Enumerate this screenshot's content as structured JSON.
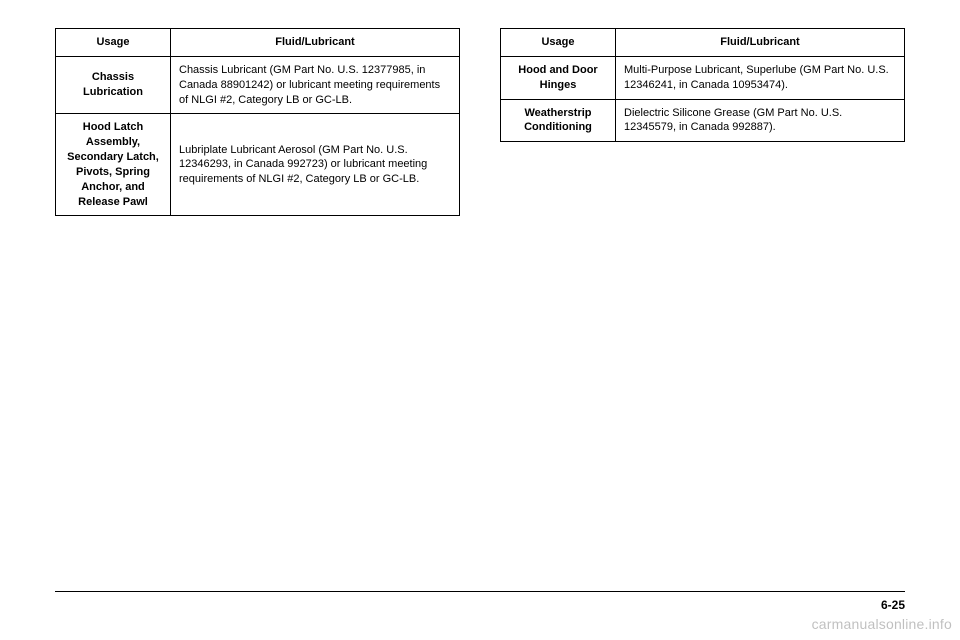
{
  "left_table": {
    "headers": [
      "Usage",
      "Fluid/Lubricant"
    ],
    "rows": [
      {
        "usage": "Chassis Lubrication",
        "fluid": "Chassis Lubricant (GM Part No. U.S. 12377985, in Canada 88901242) or lubricant meeting requirements of NLGI #2, Category LB or GC-LB."
      },
      {
        "usage": "Hood Latch Assembly, Secondary Latch, Pivots, Spring Anchor, and Release Pawl",
        "fluid": "Lubriplate Lubricant Aerosol (GM Part No. U.S. 12346293, in Canada 992723) or lubricant meeting requirements of NLGI #2, Category LB or GC-LB."
      }
    ]
  },
  "right_table": {
    "headers": [
      "Usage",
      "Fluid/Lubricant"
    ],
    "rows": [
      {
        "usage": "Hood and Door Hinges",
        "fluid": "Multi-Purpose Lubricant, Superlube (GM Part No. U.S. 12346241, in Canada 10953474)."
      },
      {
        "usage": "Weatherstrip Conditioning",
        "fluid": "Dielectric Silicone Grease (GM Part No. U.S. 12345579, in Canada 992887)."
      }
    ]
  },
  "page_number": "6-25",
  "watermark": "carmanualsonline.info"
}
